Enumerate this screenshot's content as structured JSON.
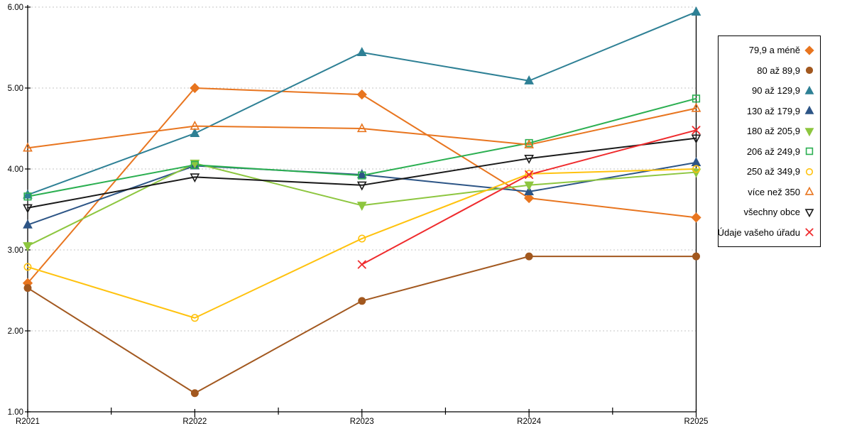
{
  "page": {
    "background_color": "#FFFFFF",
    "text_color": "#000000",
    "gridline_color": "#C6C6C6",
    "axis_color": "#000000"
  },
  "chart_data": {
    "type": "line",
    "title": "",
    "xlabel": "",
    "ylabel": "",
    "x_categories": [
      "R2021",
      "R2022",
      "R2023",
      "R2024",
      "R2025"
    ],
    "ylim": [
      1,
      6
    ],
    "ytick_labels": [
      "1.00",
      "2.00",
      "3.00",
      "4.00",
      "5.00",
      "6.00"
    ],
    "ytick_values": [
      1,
      2,
      3,
      4,
      5,
      6
    ],
    "grid": "horizontal-dotted",
    "legend_position": "right",
    "series": [
      {
        "name": "79,9 a méně",
        "color": "#E8751F",
        "marker": "diamond",
        "fill": "solid",
        "values": [
          2.59,
          5.0,
          4.92,
          3.64,
          3.4
        ]
      },
      {
        "name": "80 až 89,9",
        "color": "#A2581F",
        "marker": "circle",
        "fill": "solid",
        "values": [
          2.53,
          1.23,
          2.37,
          2.92,
          2.92
        ]
      },
      {
        "name": "90 až 129,9",
        "color": "#2E8095",
        "marker": "triangle-up",
        "fill": "solid",
        "values": [
          3.68,
          4.44,
          5.44,
          5.09,
          5.94
        ]
      },
      {
        "name": "130 až 179,9",
        "color": "#2D5586",
        "marker": "triangle-up",
        "fill": "solid",
        "values": [
          3.31,
          4.04,
          3.93,
          3.72,
          4.08
        ]
      },
      {
        "name": "180 až 205,9",
        "color": "#8DC63F",
        "marker": "triangle-down",
        "fill": "solid",
        "values": [
          3.05,
          4.07,
          3.55,
          3.8,
          3.96
        ]
      },
      {
        "name": "206 až 249,9",
        "color": "#2BAF51",
        "marker": "square",
        "fill": "open",
        "values": [
          3.66,
          4.05,
          3.92,
          4.32,
          4.87
        ]
      },
      {
        "name": "250 až 349,9",
        "color": "#FFC20E",
        "marker": "circle",
        "fill": "open",
        "values": [
          2.79,
          2.16,
          3.14,
          3.94,
          4.0
        ]
      },
      {
        "name": "více než 350",
        "color": "#E8751F",
        "marker": "triangle-up",
        "fill": "open",
        "values": [
          4.26,
          4.53,
          4.5,
          4.3,
          4.75
        ]
      },
      {
        "name": "všechny obce",
        "color": "#1A1A1A",
        "marker": "triangle-down",
        "fill": "open",
        "values": [
          3.52,
          3.9,
          3.8,
          4.13,
          4.38
        ]
      },
      {
        "name": "Údaje vašeho úřadu",
        "color": "#EF2B2D",
        "marker": "x",
        "fill": "open",
        "values": [
          null,
          null,
          2.82,
          3.93,
          4.48
        ]
      }
    ]
  }
}
